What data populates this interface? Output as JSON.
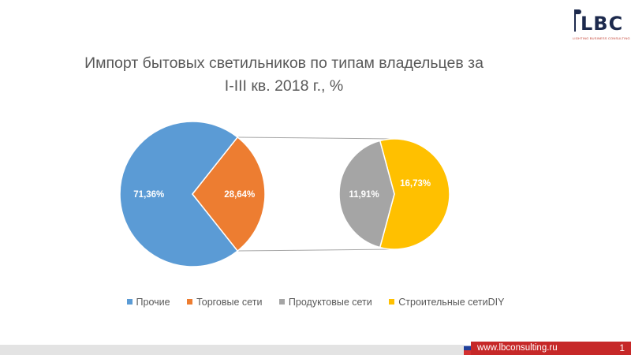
{
  "logo": {
    "text": "LBC",
    "tagline": "LIGHTING BUSINESS CONSULTING"
  },
  "footer": {
    "url": "www.lbconsulting.ru",
    "page_number": "1"
  },
  "colors": {
    "prochie": "#5b9bd5",
    "torgovye": "#ed7d31",
    "produktovye": "#a5a5a5",
    "stroitelnye": "#ffc000"
  },
  "chart_data": {
    "type": "pie",
    "title": "Импорт бытовых светильников по типам владельцев за I-III кв. 2018 г., %",
    "title_lines": [
      "Импорт бытовых светильников по типам владельцев за",
      "I-III кв. 2018 г., %"
    ],
    "main_pie": {
      "slices": [
        {
          "name": "Прочие",
          "value": 71.36,
          "label": "71,36%"
        },
        {
          "name": "Торговые сети",
          "value": 28.64,
          "label": "28,64%"
        }
      ]
    },
    "secondary_pie": {
      "breakdown_of": "Торговые сети",
      "slices": [
        {
          "name": "Строительные сетиDIY",
          "value": 16.73,
          "label": "16,73%"
        },
        {
          "name": "Продуктовые сети",
          "value": 11.91,
          "label": "11,91%"
        }
      ]
    },
    "legend": [
      "Прочие",
      "Торговые сети",
      "Продуктовые сети",
      "Строительные сетиDIY"
    ],
    "legend_position": "bottom"
  }
}
